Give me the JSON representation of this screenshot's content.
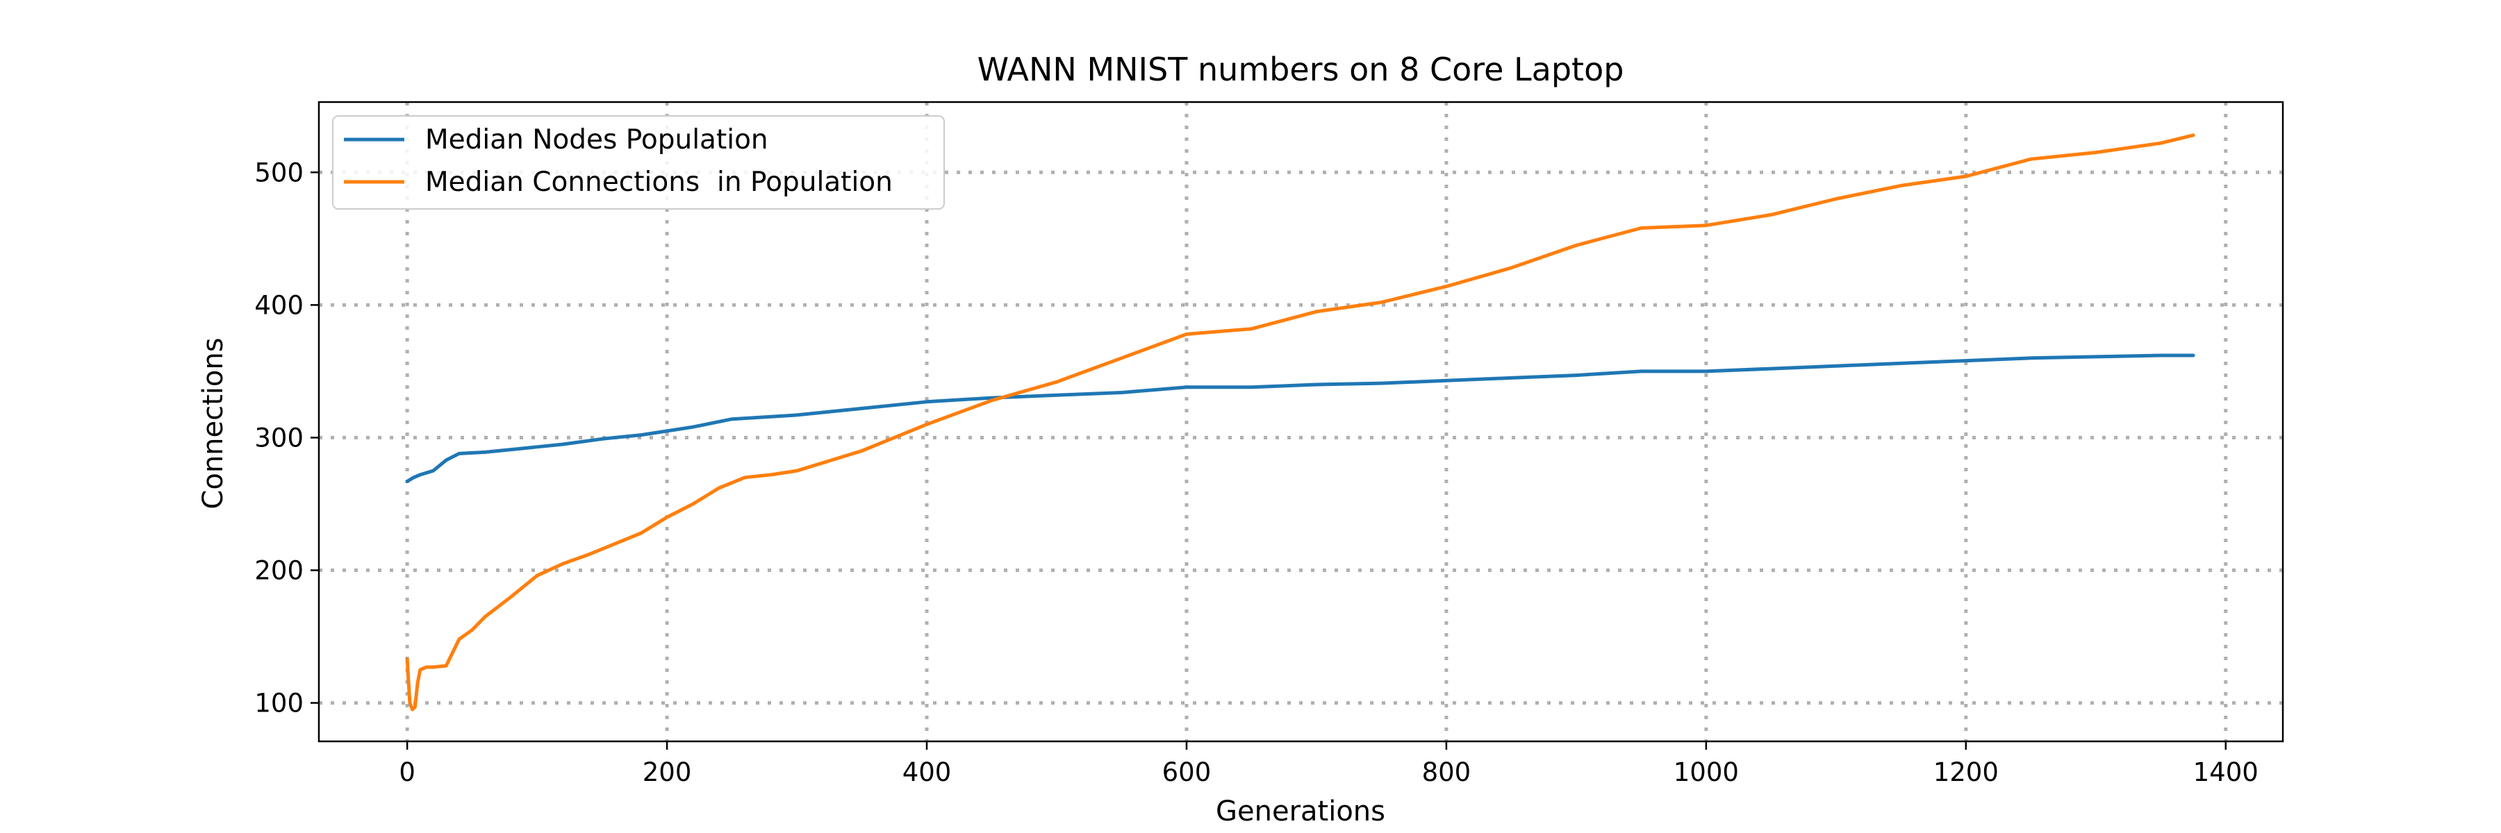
{
  "chart_data": {
    "type": "line",
    "title": "WANN MNIST numbers on 8 Core Laptop",
    "xlabel": "Generations",
    "ylabel": "Connections",
    "xlim": [
      -68,
      1444
    ],
    "ylim": [
      71,
      553
    ],
    "xticks": [
      0,
      200,
      400,
      600,
      800,
      1000,
      1200,
      1400
    ],
    "yticks": [
      100,
      200,
      300,
      400,
      500
    ],
    "xtick_labels": [
      "0",
      "200",
      "400",
      "600",
      "800",
      "1000",
      "1200",
      "1400"
    ],
    "ytick_labels": [
      "100",
      "200",
      "300",
      "400",
      "500"
    ],
    "grid": true,
    "grid_style": "dotted",
    "legend_position": "upper-left",
    "series": [
      {
        "name": "Median Nodes Population",
        "color": "#1f77b4",
        "x": [
          0,
          5,
          10,
          20,
          30,
          40,
          60,
          80,
          100,
          120,
          150,
          180,
          200,
          220,
          250,
          300,
          350,
          400,
          450,
          500,
          550,
          600,
          650,
          700,
          750,
          800,
          850,
          900,
          950,
          1000,
          1050,
          1100,
          1150,
          1200,
          1250,
          1300,
          1350,
          1375
        ],
        "y": [
          267,
          270,
          272,
          275,
          283,
          288,
          289,
          291,
          293,
          295,
          299,
          302,
          305,
          308,
          314,
          317,
          322,
          327,
          330,
          332,
          334,
          338,
          338,
          340,
          341,
          343,
          345,
          347,
          350,
          350,
          352,
          354,
          356,
          358,
          360,
          361,
          362,
          362
        ]
      },
      {
        "name": "Median Connections  in Population",
        "color": "#ff7f0e",
        "x": [
          0,
          2,
          4,
          6,
          8,
          10,
          15,
          20,
          30,
          40,
          50,
          60,
          80,
          100,
          120,
          140,
          160,
          180,
          200,
          220,
          240,
          260,
          280,
          300,
          350,
          400,
          450,
          500,
          550,
          600,
          650,
          700,
          750,
          800,
          850,
          900,
          950,
          1000,
          1050,
          1100,
          1150,
          1200,
          1250,
          1300,
          1350,
          1375
        ],
        "y": [
          133,
          100,
          95,
          97,
          115,
          125,
          127,
          127,
          128,
          148,
          155,
          165,
          180,
          196,
          205,
          212,
          220,
          228,
          240,
          250,
          262,
          270,
          272,
          275,
          290,
          310,
          328,
          342,
          360,
          378,
          382,
          395,
          402,
          414,
          428,
          445,
          458,
          460,
          468,
          480,
          490,
          497,
          510,
          515,
          522,
          528
        ]
      }
    ]
  }
}
